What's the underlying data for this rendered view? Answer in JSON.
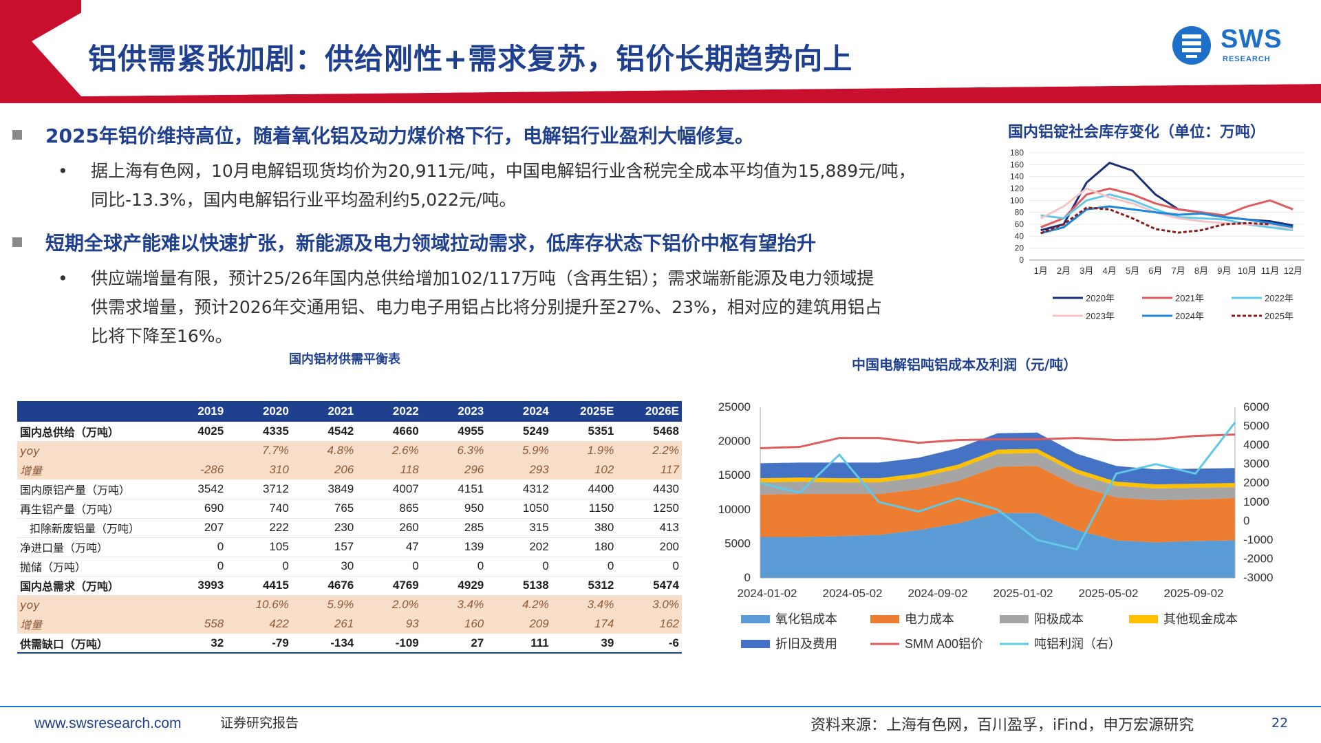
{
  "header": {
    "title": "铝供需紧张加剧：供给刚性+需求复苏，铝价长期趋势向上",
    "logo_text": "SWS",
    "logo_sub": "RESEARCH"
  },
  "bullets": [
    {
      "heading": "2025年铝价维持高位，随着氧化铝及动力煤价格下行，电解铝行业盈利大幅修复。",
      "detail_lines": [
        "据上海有色网，10月电解铝现货均价为20,911元/吨，中国电解铝行业含税完全成本平均值为15,889元/吨，",
        "同比-13.3%，国内电解铝行业平均盈利约5,022元/吨。"
      ]
    },
    {
      "heading": "短期全球产能难以快速扩张，新能源及电力领域拉动需求，低库存状态下铝价中枢有望抬升",
      "detail_lines": [
        "供应端增量有限，预计25/26年国内总供给增加102/117万吨（含再生铝）；需求端新能源及电力领域提",
        "供需求增量，预计2026年交通用铝、电力电子用铝占比将分别提升至27%、23%，相对应的建筑用铝占",
        "比将下降至16%。"
      ]
    }
  ],
  "bullet_dot": "•",
  "table": {
    "caption": "国内铝材供需平衡表",
    "columns": [
      "2019",
      "2020",
      "2021",
      "2022",
      "2023",
      "2024",
      "2025E",
      "2026E"
    ],
    "rows": [
      {
        "label": "国内总供给（万吨）",
        "style": "bold",
        "values": [
          "4025",
          "4335",
          "4542",
          "4660",
          "4955",
          "5249",
          "5351",
          "5468"
        ]
      },
      {
        "label": "yoy",
        "style": "pct",
        "values": [
          "",
          "7.7%",
          "4.8%",
          "2.6%",
          "6.3%",
          "5.9%",
          "1.9%",
          "2.2%"
        ]
      },
      {
        "label": "增量",
        "style": "pct",
        "values": [
          "-286",
          "310",
          "206",
          "118",
          "296",
          "293",
          "102",
          "117"
        ]
      },
      {
        "label": "国内原铝产量（万吨）",
        "style": "row",
        "values": [
          "3542",
          "3712",
          "3849",
          "4007",
          "4151",
          "4312",
          "4400",
          "4430"
        ]
      },
      {
        "label": "再生铝产量（万吨）",
        "style": "row",
        "values": [
          "690",
          "740",
          "765",
          "865",
          "950",
          "1050",
          "1150",
          "1250"
        ]
      },
      {
        "label": "扣除新废铝量（万吨）",
        "style": "row indent",
        "values": [
          "207",
          "222",
          "230",
          "260",
          "285",
          "315",
          "380",
          "413"
        ]
      },
      {
        "label": "净进口量（万吨）",
        "style": "row",
        "values": [
          "0",
          "105",
          "157",
          "47",
          "139",
          "202",
          "180",
          "200"
        ]
      },
      {
        "label": "抛储（万吨）",
        "style": "row",
        "values": [
          "0",
          "0",
          "30",
          "0",
          "0",
          "0",
          "0",
          "0"
        ]
      },
      {
        "label": "国内总需求（万吨）",
        "style": "bold",
        "values": [
          "3993",
          "4415",
          "4676",
          "4769",
          "4929",
          "5138",
          "5312",
          "5474"
        ]
      },
      {
        "label": "yoy",
        "style": "pct",
        "values": [
          "",
          "10.6%",
          "5.9%",
          "2.0%",
          "3.4%",
          "4.2%",
          "3.4%",
          "3.0%"
        ]
      },
      {
        "label": "增量",
        "style": "pct",
        "values": [
          "558",
          "422",
          "261",
          "93",
          "160",
          "209",
          "174",
          "162"
        ]
      },
      {
        "label": "供需缺口（万吨）",
        "style": "bold last",
        "values": [
          "32",
          "-79",
          "-134",
          "-109",
          "27",
          "111",
          "39",
          "-6"
        ]
      }
    ]
  },
  "chart_data": [
    {
      "type": "line",
      "title": "国内铝锭社会库存变化（单位：万吨）",
      "categories": [
        "1月",
        "2月",
        "3月",
        "4月",
        "5月",
        "6月",
        "7月",
        "8月",
        "9月",
        "10月",
        "11月",
        "12月"
      ],
      "ylim": [
        0,
        180
      ],
      "yticks": [
        0,
        20,
        40,
        60,
        80,
        100,
        120,
        140,
        160,
        180
      ],
      "series": [
        {
          "name": "2020年",
          "color": "#1a2f7a",
          "dash": "",
          "values": [
            50,
            60,
            130,
            163,
            150,
            110,
            85,
            80,
            72,
            68,
            65,
            58
          ]
        },
        {
          "name": "2021年",
          "color": "#e05c5c",
          "dash": "",
          "values": [
            55,
            70,
            110,
            120,
            110,
            95,
            85,
            80,
            75,
            90,
            100,
            85
          ]
        },
        {
          "name": "2022年",
          "color": "#62c8e8",
          "dash": "",
          "values": [
            75,
            70,
            100,
            110,
            100,
            85,
            72,
            70,
            68,
            60,
            55,
            50
          ]
        },
        {
          "name": "2023年",
          "color": "#f4c4c4",
          "dash": "",
          "values": [
            70,
            90,
            120,
            105,
            95,
            80,
            70,
            65,
            62,
            60,
            60,
            52
          ]
        },
        {
          "name": "2024年",
          "color": "#1e88d8",
          "dash": "",
          "values": [
            45,
            55,
            85,
            90,
            85,
            80,
            76,
            78,
            72,
            68,
            62,
            55
          ]
        },
        {
          "name": "2025年",
          "color": "#8b1a1a",
          "dash": "5,3",
          "values": [
            45,
            60,
            88,
            85,
            70,
            52,
            46,
            50,
            60,
            62,
            60,
            null
          ]
        }
      ]
    },
    {
      "type": "area",
      "title": "中国电解铝吨铝成本及利润（元/吨）",
      "x_ticks": [
        "2024-01-02",
        "2024-05-02",
        "2024-09-02",
        "2025-01-02",
        "2025-05-02",
        "2025-09-02"
      ],
      "ylim": [
        0,
        25000
      ],
      "yticks": [
        0,
        5000,
        10000,
        15000,
        20000,
        25000
      ],
      "y2lim": [
        -3000,
        6000
      ],
      "y2ticks": [
        -3000,
        -2000,
        -1000,
        0,
        1000,
        2000,
        3000,
        4000,
        5000,
        6000
      ],
      "stacked_series": [
        {
          "name": "氧化铝成本",
          "color": "#5b9bd5",
          "values": [
            6000,
            6000,
            6100,
            6300,
            7000,
            8000,
            9500,
            9500,
            7000,
            5500,
            5200,
            5400,
            5500
          ]
        },
        {
          "name": "电力成本",
          "color": "#ed7d31",
          "values": [
            6200,
            6300,
            6200,
            6000,
            6000,
            6200,
            6800,
            6900,
            6500,
            6300,
            6200,
            6100,
            6200
          ]
        },
        {
          "name": "阳极成本",
          "color": "#a5a5a5",
          "values": [
            1800,
            1800,
            1700,
            1700,
            1700,
            1800,
            1900,
            1900,
            1800,
            1700,
            1700,
            1700,
            1600
          ]
        },
        {
          "name": "其他现金成本",
          "color": "#ffc000",
          "values": [
            600,
            600,
            600,
            600,
            600,
            600,
            600,
            600,
            600,
            600,
            600,
            600,
            600
          ]
        },
        {
          "name": "折旧及费用",
          "color": "#4472c4",
          "values": [
            2200,
            2200,
            2300,
            2300,
            2300,
            2400,
            2400,
            2400,
            2300,
            2300,
            2200,
            2200,
            2200
          ]
        }
      ],
      "line_series": [
        {
          "name": "SMM A00铝价",
          "color": "#e05c5c",
          "axis": "left",
          "values": [
            19000,
            19200,
            20500,
            20500,
            19800,
            20200,
            20300,
            20300,
            20500,
            20200,
            20300,
            20800,
            21000
          ]
        },
        {
          "name": "吨铝利润（右）",
          "color": "#62c8e8",
          "axis": "right",
          "values": [
            2000,
            1500,
            3500,
            1000,
            500,
            1200,
            600,
            -1000,
            -1500,
            2500,
            3000,
            2500,
            5200
          ]
        }
      ]
    }
  ],
  "footer": {
    "site": "www.swsresearch.com",
    "report_type": "证券研究报告",
    "source": "资料来源：上海有色网，百川盈孚，iFind，申万宏源研究",
    "page": "22"
  }
}
